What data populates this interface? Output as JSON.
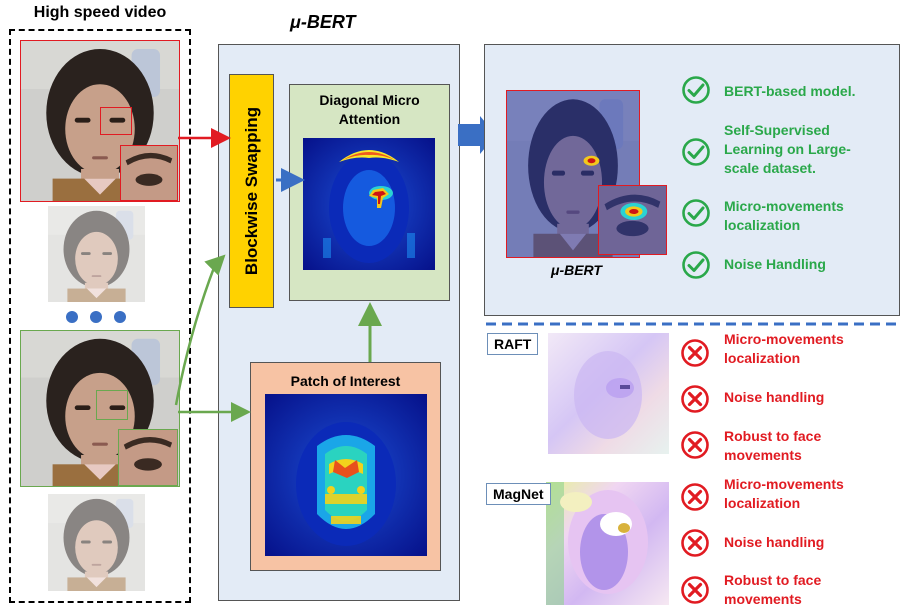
{
  "video": {
    "title": "High speed video"
  },
  "bert": {
    "title": "μ-BERT",
    "swap_label": "Blockwise Swapping",
    "attention_title": "Diagonal Micro Attention",
    "poi_title": "Patch of Interest"
  },
  "result": {
    "label": "μ-BERT",
    "features": [
      {
        "text": "BERT-based model.",
        "icon": "check-circle-icon"
      },
      {
        "text": "Self-Supervised Learning on Large-scale dataset.",
        "icon": "check-circle-icon"
      },
      {
        "text": "Micro-movements localization",
        "icon": "check-circle-icon"
      },
      {
        "text": "Noise Handling",
        "icon": "check-circle-icon"
      }
    ]
  },
  "raft": {
    "label": "RAFT",
    "items": [
      {
        "text": "Micro-movements localization",
        "icon": "cross-circle-icon"
      },
      {
        "text": "Noise handling",
        "icon": "cross-circle-icon"
      },
      {
        "text": "Robust to face movements",
        "icon": "cross-circle-icon"
      }
    ]
  },
  "magnet": {
    "label": "MagNet",
    "items": [
      {
        "text": "Micro-movements localization",
        "icon": "cross-circle-icon"
      },
      {
        "text": "Noise handling",
        "icon": "cross-circle-icon"
      },
      {
        "text": "Robust to face movements",
        "icon": "cross-circle-icon"
      }
    ]
  },
  "colors": {
    "good": "#2aa84a",
    "bad": "#e11b22",
    "accent": "#3a6fc4",
    "arrow_red": "#e11b22",
    "arrow_green": "#6aa84f"
  }
}
